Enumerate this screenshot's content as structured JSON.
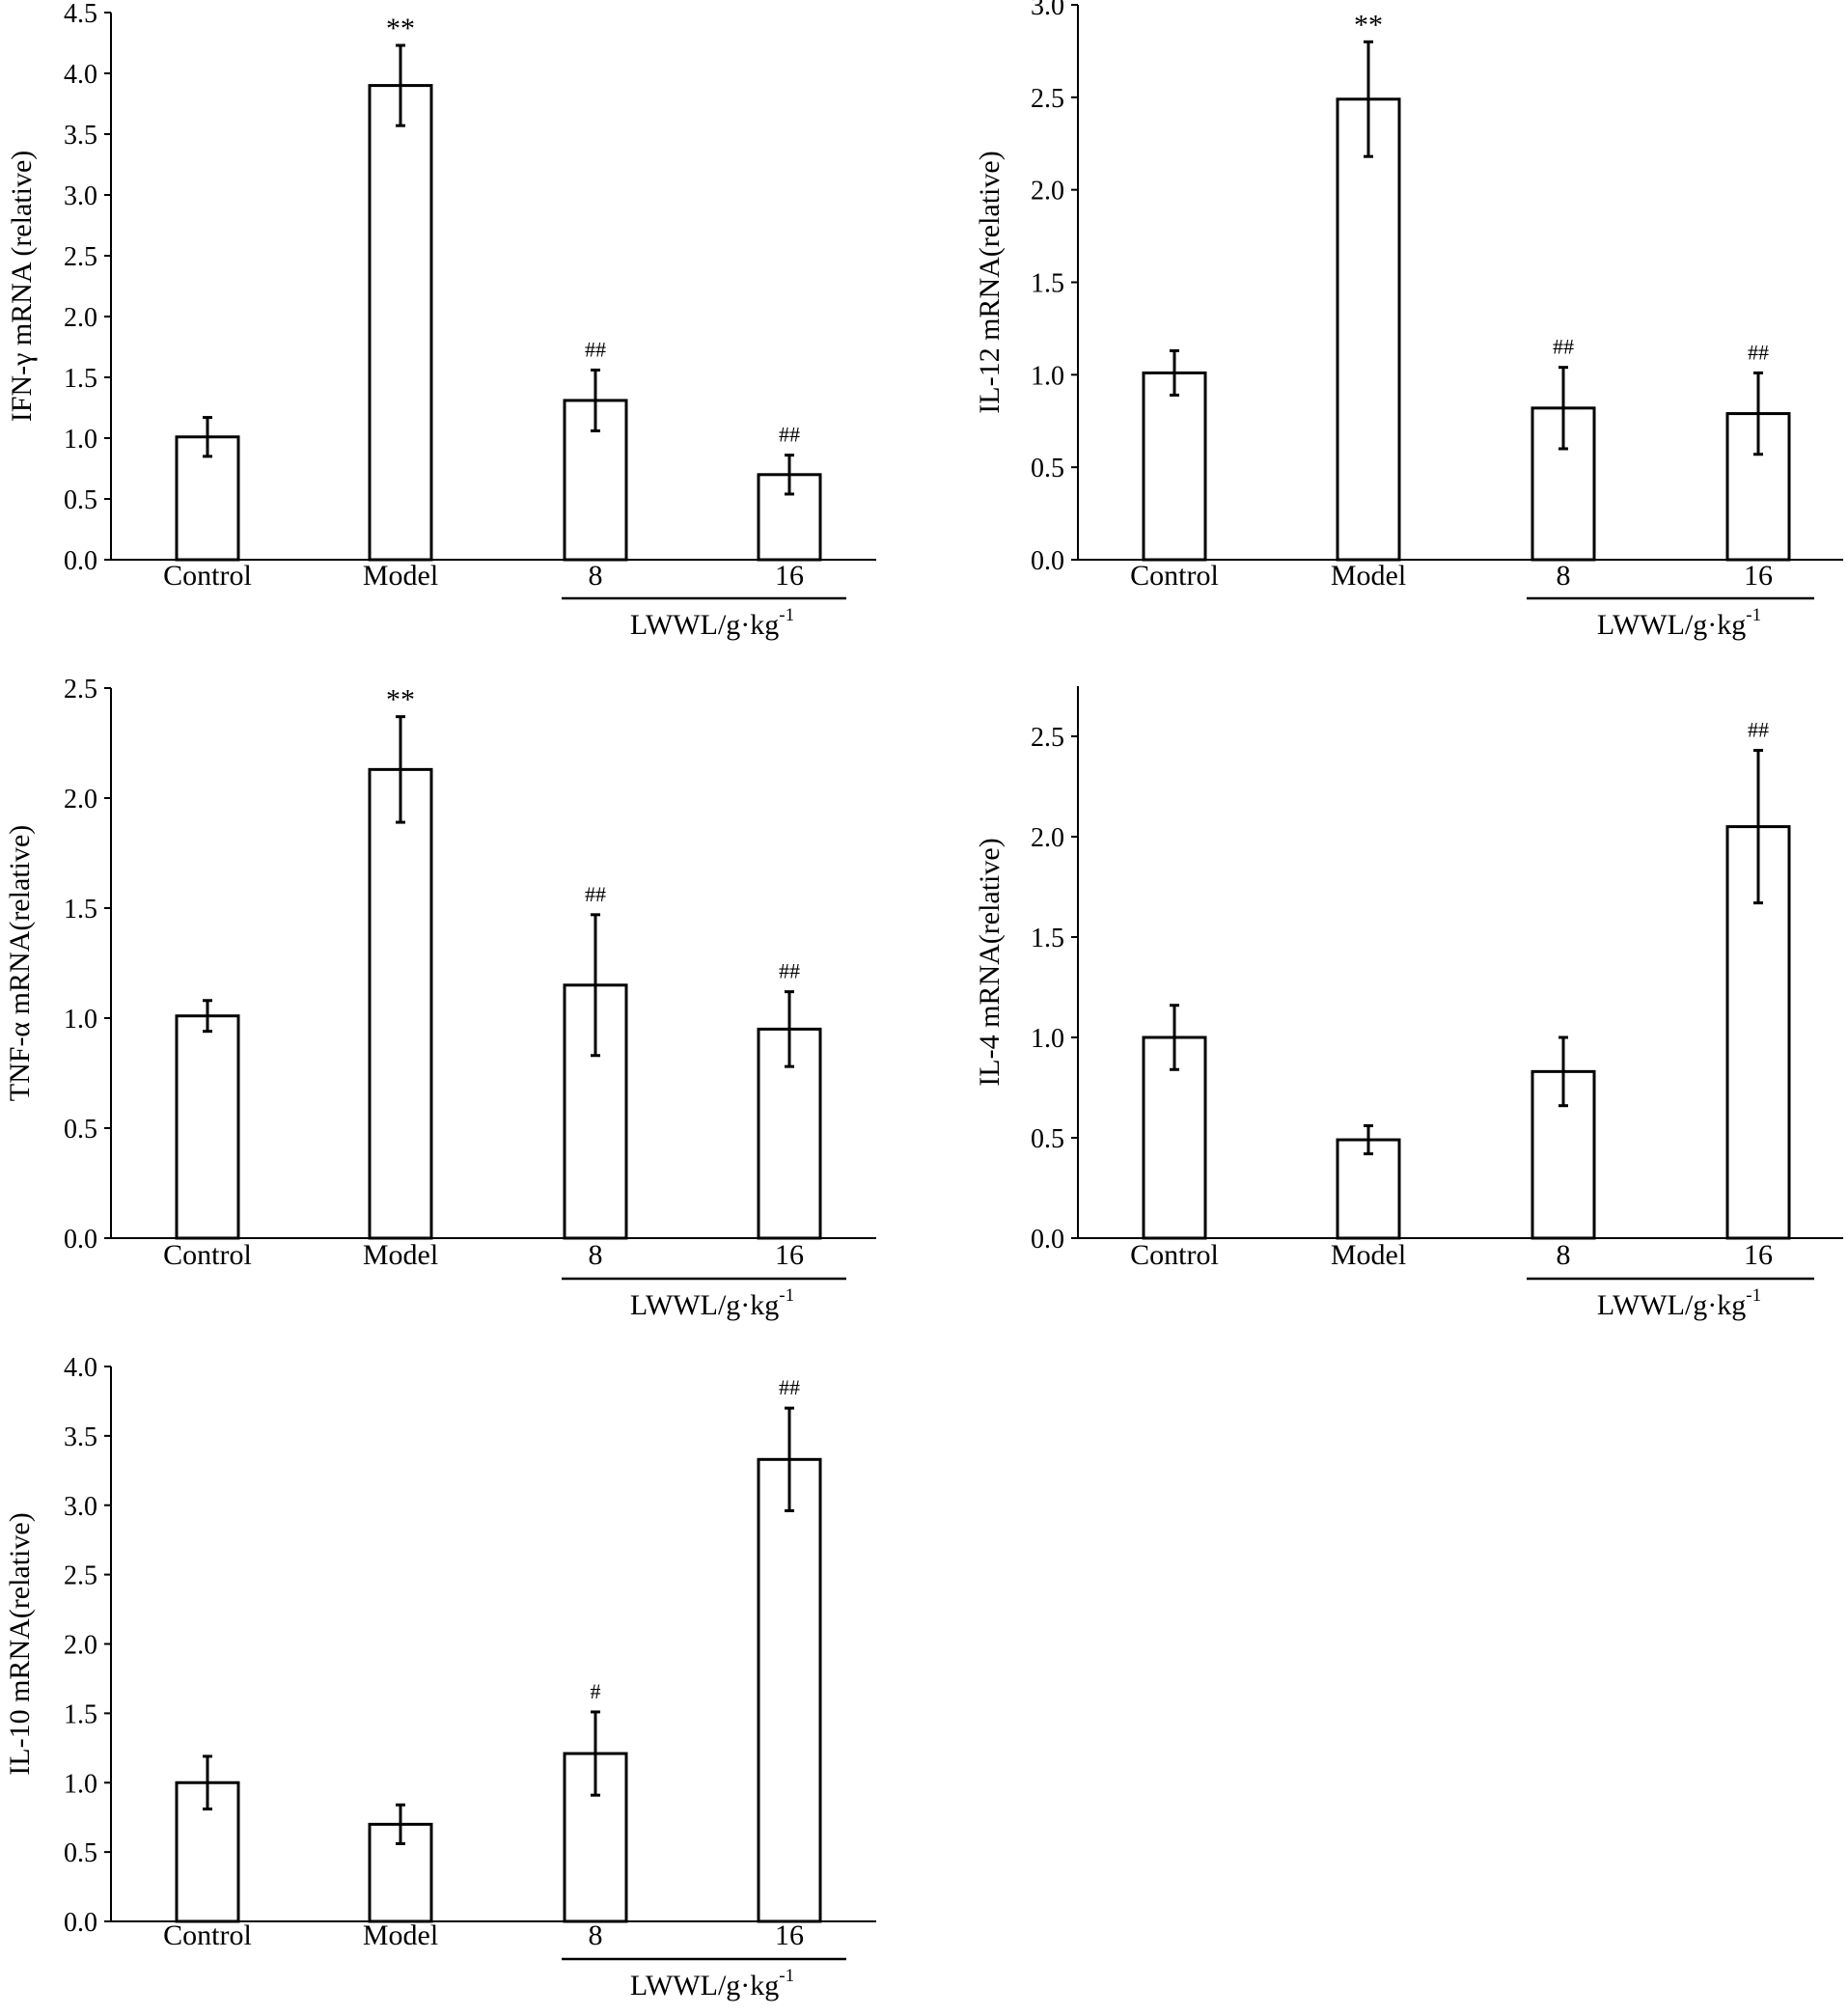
{
  "chart_data": [
    {
      "type": "bar",
      "id": "ifn-gamma",
      "ylabel": "IFN-γ mRNA (relative)",
      "categories": [
        "Control",
        "Model",
        "8",
        "16"
      ],
      "values": [
        1.01,
        3.9,
        1.31,
        0.7
      ],
      "errors": [
        0.16,
        0.33,
        0.25,
        0.16
      ],
      "annotations": [
        "",
        "**",
        "##",
        "##"
      ],
      "ylim": [
        0,
        4.5
      ],
      "yticks": [
        "0.0",
        "0.5",
        "1.0",
        "1.5",
        "2.0",
        "2.5",
        "3.0",
        "3.5",
        "4.0",
        "4.5"
      ],
      "group_label": "LWWL/g·kg",
      "group_label_sup": "-1"
    },
    {
      "type": "bar",
      "id": "il-12",
      "ylabel": "IL-12 mRNA(relative)",
      "categories": [
        "Control",
        "Model",
        "8",
        "16"
      ],
      "values": [
        1.01,
        2.49,
        0.82,
        0.79
      ],
      "errors": [
        0.12,
        0.31,
        0.22,
        0.22
      ],
      "annotations": [
        "",
        "**",
        "##",
        "##"
      ],
      "ylim": [
        0,
        3.0
      ],
      "yticks": [
        "0.0",
        "0.5",
        "1.0",
        "1.5",
        "2.0",
        "2.5",
        "3.0"
      ],
      "group_label": "LWWL/g·kg",
      "group_label_sup": "-1"
    },
    {
      "type": "bar",
      "id": "tnf-alpha",
      "ylabel": "TNF-α mRNA(relative)",
      "categories": [
        "Control",
        "Model",
        "8",
        "16"
      ],
      "values": [
        1.01,
        2.13,
        1.15,
        0.95
      ],
      "errors": [
        0.07,
        0.24,
        0.32,
        0.17
      ],
      "annotations": [
        "",
        "**",
        "##",
        "##"
      ],
      "ylim": [
        0,
        2.5
      ],
      "yticks": [
        "0.0",
        "0.5",
        "1.0",
        "1.5",
        "2.0",
        "2.5"
      ],
      "group_label": "LWWL/g·kg",
      "group_label_sup": "-1"
    },
    {
      "type": "bar",
      "id": "il-4",
      "ylabel": "IL-4 mRNA(relative)",
      "categories": [
        "Control",
        "Model",
        "8",
        "16"
      ],
      "values": [
        1.0,
        0.49,
        0.83,
        2.05
      ],
      "errors": [
        0.16,
        0.07,
        0.17,
        0.38
      ],
      "annotations": [
        "",
        "",
        "",
        "##"
      ],
      "ylim": [
        0,
        2.75
      ],
      "yticks": [
        "0.0",
        "0.5",
        "1.0",
        "1.5",
        "2.0",
        "2.5"
      ],
      "group_label": "LWWL/g·kg",
      "group_label_sup": "-1"
    },
    {
      "type": "bar",
      "id": "il-10",
      "ylabel": "IL-10 mRNA(relative)",
      "categories": [
        "Control",
        "Model",
        "8",
        "16"
      ],
      "values": [
        1.0,
        0.7,
        1.21,
        3.33
      ],
      "errors": [
        0.19,
        0.14,
        0.3,
        0.37
      ],
      "annotations": [
        "",
        "",
        "#",
        "##"
      ],
      "ylim": [
        0,
        4.0
      ],
      "yticks": [
        "0.0",
        "0.5",
        "1.0",
        "1.5",
        "2.0",
        "2.5",
        "3.0",
        "3.5",
        "4.0"
      ],
      "group_label": "LWWL/g·kg",
      "group_label_sup": "-1"
    }
  ]
}
